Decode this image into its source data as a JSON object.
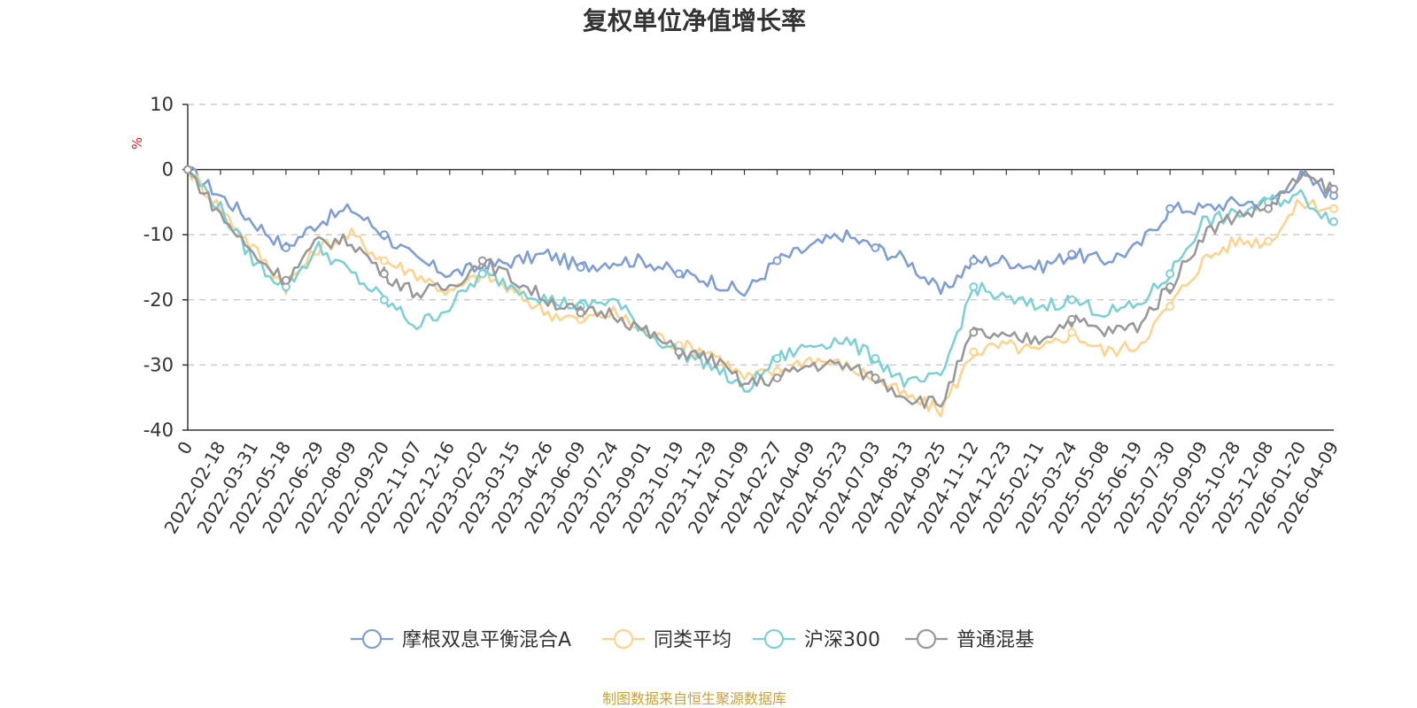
{
  "chart_data": {
    "type": "line",
    "title": "复权单位净值增长率",
    "ylabel": "%",
    "ylim": [
      -40,
      10
    ],
    "yticks": [
      10,
      0,
      -10,
      -20,
      -30,
      -40
    ],
    "x_start_label": "0",
    "categories": [
      "0",
      "2022-02-18",
      "2022-03-31",
      "2022-05-18",
      "2022-06-29",
      "2022-08-09",
      "2022-09-20",
      "2022-11-07",
      "2022-12-16",
      "2023-02-02",
      "2023-03-15",
      "2023-04-26",
      "2023-06-09",
      "2023-07-24",
      "2023-09-01",
      "2023-10-19",
      "2023-11-29",
      "2024-01-09",
      "2024-02-27",
      "2024-04-09",
      "2024-05-23",
      "2024-07-03",
      "2024-08-13",
      "2024-09-25",
      "2024-11-12",
      "2024-12-23",
      "2025-02-11",
      "2025-03-24",
      "2025-05-08",
      "2025-06-19",
      "2025-07-30",
      "2025-09-09",
      "2025-10-28",
      "2025-12-08",
      "2026-01-20",
      "2026-04-09"
    ],
    "series": [
      {
        "name": "摩根双息平衡混合A",
        "color": "#7f9fd4",
        "values": [
          0,
          -4,
          -8,
          -12,
          -8,
          -6,
          -10,
          -14,
          -16,
          -15,
          -14,
          -13,
          -15,
          -14,
          -14,
          -16,
          -17,
          -19,
          -14,
          -12,
          -10,
          -12,
          -14,
          -19,
          -14,
          -14,
          -15,
          -13,
          -14,
          -12,
          -6,
          -6,
          -5,
          -5,
          -1,
          -4
        ]
      },
      {
        "name": "同类平均",
        "color": "#fcd48f",
        "values": [
          0,
          -6,
          -12,
          -18,
          -12,
          -10,
          -14,
          -16,
          -19,
          -16,
          -19,
          -22,
          -23,
          -22,
          -25,
          -27,
          -28,
          -32,
          -31,
          -29,
          -30,
          -32,
          -35,
          -37,
          -28,
          -27,
          -28,
          -25,
          -28,
          -27,
          -21,
          -14,
          -11,
          -11,
          -5,
          -6
        ]
      },
      {
        "name": "沪深300",
        "color": "#7fd0d6",
        "values": [
          0,
          -6,
          -14,
          -18,
          -12,
          -16,
          -20,
          -24,
          -21,
          -16,
          -18,
          -20,
          -21,
          -20,
          -25,
          -28,
          -30,
          -34,
          -29,
          -27,
          -26,
          -29,
          -33,
          -32,
          -18,
          -20,
          -21,
          -20,
          -22,
          -21,
          -16,
          -8,
          -7,
          -5,
          -4,
          -8
        ]
      },
      {
        "name": "普通混基",
        "color": "#999999",
        "values": [
          0,
          -7,
          -13,
          -17,
          -11,
          -11,
          -16,
          -19,
          -18,
          -14,
          -17,
          -20,
          -22,
          -22,
          -25,
          -28,
          -29,
          -33,
          -32,
          -30,
          -30,
          -32,
          -35,
          -36,
          -25,
          -26,
          -26,
          -23,
          -25,
          -24,
          -18,
          -10,
          -7,
          -6,
          -1,
          -3
        ]
      }
    ],
    "legend_position": "bottom-center",
    "grid": true,
    "source_note": "制图数据来自恒生聚源数据库"
  }
}
